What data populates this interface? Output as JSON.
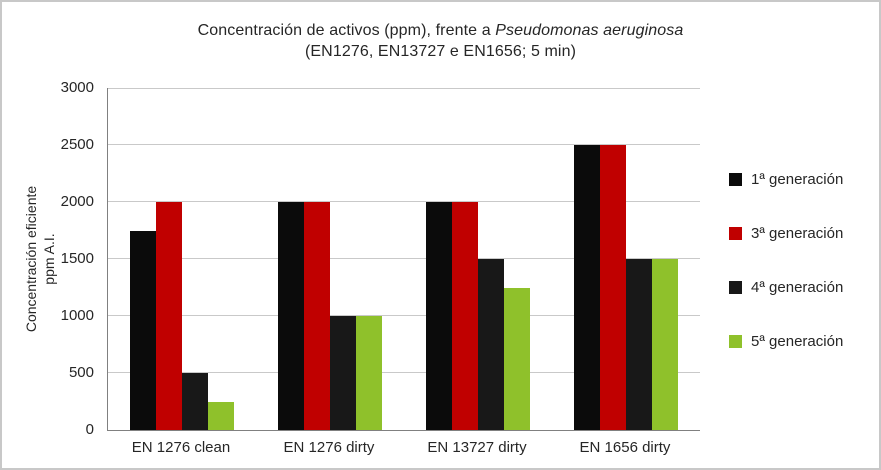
{
  "title": {
    "line1_prefix": "Concentración de activos (ppm), frente a ",
    "line1_italic": "Pseudomonas aeruginosa",
    "line2": "(EN1276, EN13727 e EN1656; 5 min)"
  },
  "chart_data": {
    "type": "bar",
    "title": "Concentración de activos (ppm), frente a Pseudomonas aeruginosa (EN1276, EN13727 e EN1656; 5 min)",
    "xlabel": "",
    "ylabel": "Concentración eficiente ppm A.I.",
    "ylabel_lines": [
      "Concentración eficiente",
      "ppm A.I."
    ],
    "ylim": [
      0,
      3000
    ],
    "ytick_step": 500,
    "yticks": [
      0,
      500,
      1000,
      1500,
      2000,
      2500,
      3000
    ],
    "grid": true,
    "legend_position": "right",
    "categories": [
      "EN 1276 clean",
      "EN 1276 dirty",
      "EN 13727 dirty",
      "EN 1656 dirty"
    ],
    "series": [
      {
        "name": "1ª generación",
        "color": "#0b0b0b",
        "values": [
          1750,
          2000,
          2000,
          2500
        ]
      },
      {
        "name": "3ª generación",
        "color": "#c00000",
        "values": [
          2000,
          2000,
          2000,
          2500
        ]
      },
      {
        "name": "4ª generación",
        "color": "#181818",
        "values": [
          500,
          1000,
          1500,
          1500
        ]
      },
      {
        "name": "5ª generación",
        "color": "#8fc12b",
        "values": [
          250,
          1000,
          1250,
          1500
        ]
      }
    ],
    "colors": {
      "grid": "#c9c9c9",
      "axis": "#808080",
      "text": "#262626",
      "frame_border": "#c8c8c8",
      "background": "#ffffff"
    }
  }
}
